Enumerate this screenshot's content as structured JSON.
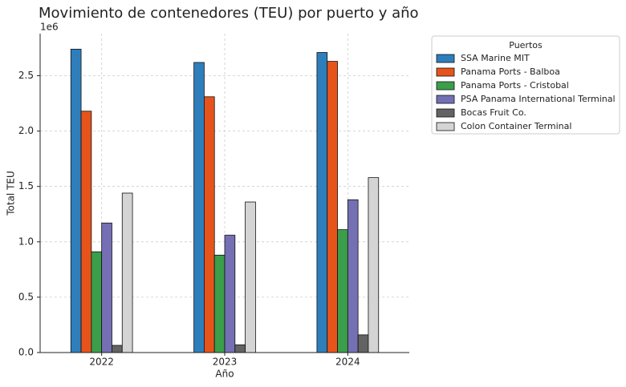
{
  "chart_data": {
    "type": "bar",
    "title": "Movimiento de contenedores (TEU) por puerto y año",
    "x_label": "Año",
    "y_label": "Total TEU",
    "y_offset_label": "1e6",
    "categories": [
      "2022",
      "2023",
      "2024"
    ],
    "series": [
      {
        "name": "SSA Marine MIT",
        "color": "#2e7ebc",
        "values": [
          2.74,
          2.62,
          2.71
        ]
      },
      {
        "name": "Panama Ports - Balboa",
        "color": "#e6541b",
        "values": [
          2.18,
          2.31,
          2.63
        ]
      },
      {
        "name": "Panama Ports - Cristobal",
        "color": "#3b9e4a",
        "values": [
          0.91,
          0.88,
          1.11
        ]
      },
      {
        "name": "PSA Panama International Terminal",
        "color": "#7570b3",
        "values": [
          1.17,
          1.06,
          1.38
        ]
      },
      {
        "name": "Bocas Fruit Co.",
        "color": "#636363",
        "values": [
          0.065,
          0.07,
          0.16
        ]
      },
      {
        "name": "Colon Container Terminal",
        "color": "#d4d4d4",
        "values": [
          1.44,
          1.36,
          1.58
        ]
      }
    ],
    "ylim": [
      0,
      2.88
    ],
    "yticks": [
      {
        "value": 0,
        "label": "0.0"
      },
      0.5,
      {
        "value": 1,
        "label": "1.0"
      },
      1.5,
      {
        "value": 2,
        "label": "2.0"
      },
      2.5
    ],
    "grid": true,
    "legend_title": "Puertos",
    "legend_position": "outside-upper-right"
  }
}
